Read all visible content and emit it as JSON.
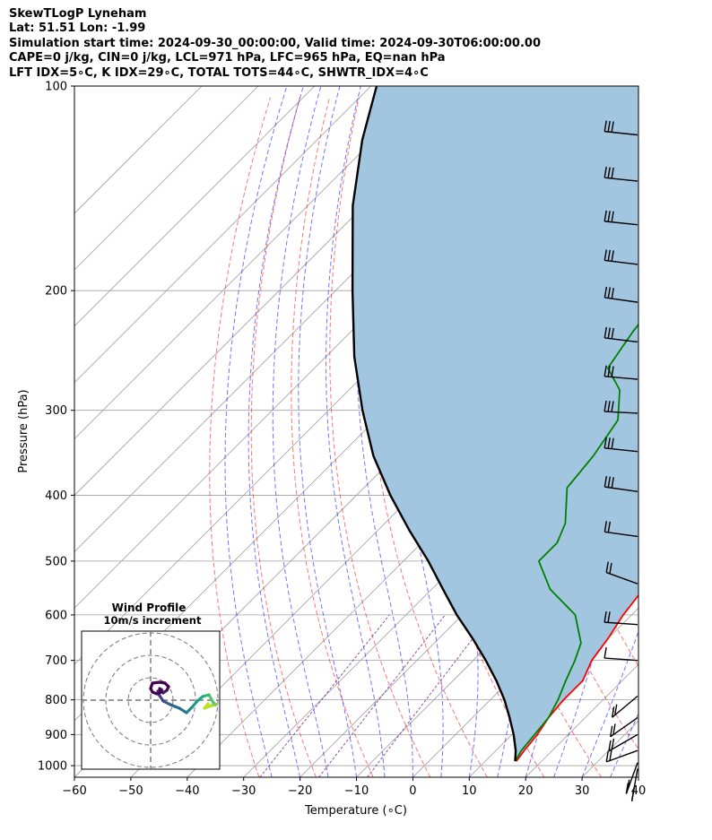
{
  "header": {
    "line1": "SkewTLogP Lyneham",
    "line2": "Lat: 51.51   Lon: -1.99",
    "line3": "Simulation start time: 2024-09-30_00:00:00, Valid time: 2024-09-30T06:00:00.00",
    "line4": "CAPE=0 j/kg, CIN=0 j/kg, LCL=971 hPa, LFC=965 hPa, EQ=nan hPa",
    "line5": "LFT IDX=5∘C, K IDX=29∘C, TOTAL TOTS=44∘C, SHWTR_IDX=4∘C"
  },
  "colors": {
    "temperature": "#ff0000",
    "dewpoint": "#008000",
    "parcel": "#000000",
    "shade": "#a3c6e0",
    "dry_adiabat": "#ff0000",
    "moist_adiabat": "#0000ff",
    "mixing_ratio": "#7b3294",
    "isotherm": "#9e9e9e"
  },
  "chart_data": [
    {
      "type": "line",
      "title": "",
      "xlabel": "Temperature (∘C)",
      "ylabel": "Pressure (hPa)",
      "xlim": [
        -60,
        40
      ],
      "ylim": [
        1040,
        100
      ],
      "y_scale": "log",
      "skew": true,
      "grid": true,
      "x_ticks": [
        "−60",
        "−50",
        "−40",
        "−30",
        "−20",
        "−10",
        "0",
        "10",
        "20",
        "30",
        "40"
      ],
      "y_ticks": [
        "100",
        "200",
        "300",
        "400",
        "500",
        "600",
        "700",
        "800",
        "900",
        "1000"
      ],
      "series": [
        {
          "role": "temperature",
          "points": [
            [
              15.5,
              985
            ],
            [
              15,
              950
            ],
            [
              14.5,
              900
            ],
            [
              13.5,
              850
            ],
            [
              13,
              800
            ],
            [
              13,
              750
            ],
            [
              11,
              700
            ],
            [
              10,
              650
            ],
            [
              8.5,
              600
            ],
            [
              7.5,
              550
            ],
            [
              5,
              500
            ],
            [
              1,
              450
            ],
            [
              -3,
              400
            ],
            [
              -8,
              350
            ],
            [
              -12,
              300
            ],
            [
              -13,
              280
            ],
            [
              -14,
              250
            ],
            [
              -16,
              230
            ],
            [
              -19,
              200
            ],
            [
              -22,
              180
            ],
            [
              -25,
              160
            ],
            [
              -29,
              140
            ],
            [
              -33,
              120
            ],
            [
              -36,
              110
            ],
            [
              -38,
              100
            ]
          ]
        },
        {
          "role": "dewpoint",
          "points": [
            [
              15.3,
              985
            ],
            [
              14.5,
              950
            ],
            [
              14,
              900
            ],
            [
              13.5,
              850
            ],
            [
              12,
              800
            ],
            [
              10,
              750
            ],
            [
              8,
              700
            ],
            [
              6,
              660
            ],
            [
              0,
              600
            ],
            [
              -9,
              550
            ],
            [
              -16,
              500
            ],
            [
              -16,
              470
            ],
            [
              -18,
              440
            ],
            [
              -24,
              390
            ],
            [
              -25,
              350
            ],
            [
              -27,
              310
            ],
            [
              -32,
              280
            ],
            [
              -38,
              260
            ],
            [
              -40,
              230
            ],
            [
              -41,
              210
            ],
            [
              -43,
              195
            ],
            [
              -46,
              180
            ],
            [
              -49,
              170
            ],
            [
              -57,
              140
            ],
            [
              -68,
              100
            ]
          ]
        },
        {
          "role": "parcel",
          "points": [
            [
              15.3,
              985
            ],
            [
              13.5,
              950
            ],
            [
              10.3,
              900
            ],
            [
              6.6,
              850
            ],
            [
              2.5,
              800
            ],
            [
              -2.3,
              750
            ],
            [
              -7.8,
              700
            ],
            [
              -14,
              650
            ],
            [
              -21,
              600
            ],
            [
              -28,
              550
            ],
            [
              -35.6,
              500
            ],
            [
              -44.5,
              450
            ],
            [
              -54,
              400
            ],
            [
              -64,
              350
            ],
            [
              -74,
              300
            ],
            [
              -85,
              250
            ],
            [
              -97,
              200
            ],
            [
              -112,
              150
            ],
            [
              -122,
              120
            ],
            [
              -129,
              100
            ]
          ]
        }
      ]
    },
    {
      "type": "line",
      "title": "Wind Profile",
      "subtitle": "10m/s increment",
      "grid": true,
      "rings": 3
    }
  ]
}
